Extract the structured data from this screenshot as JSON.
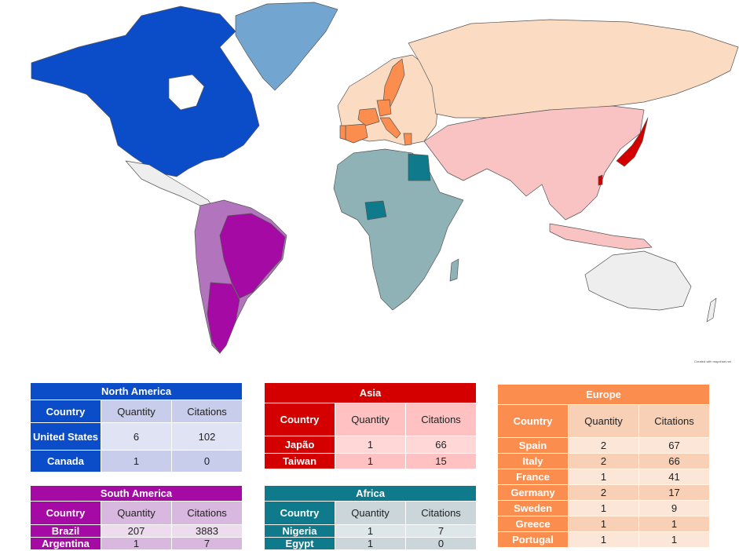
{
  "credit": "Created with mapchart.net",
  "colors": {
    "na_dark": "#0b4cc9",
    "na_mid": "#c7cdeb",
    "na_light": "#e0e3f3",
    "sa_dark": "#a50aa5",
    "sa_mid": "#d9b8df",
    "sa_light": "#ecdcee",
    "sa_map_light": "#b374be",
    "as_dark": "#d40000",
    "as_mid": "#ffc1c1",
    "as_light": "#ffd7d7",
    "as_map_light": "#f9c3c4",
    "af_dark": "#0e7a8c",
    "af_mid": "#cad6da",
    "af_light": "#dde6e9",
    "af_map_light": "#8fb2b7",
    "eu_dark": "#fb8e4f",
    "eu_mid": "#f8d0b6",
    "eu_light": "#fbe6d8",
    "eu_map_light": "#fbdcc2",
    "greenland": "#72a6d1",
    "other_land": "#eeeeee"
  },
  "tables": {
    "north_america": {
      "title": "North America",
      "headers": [
        "Country",
        "Quantity",
        "Citations"
      ],
      "rows": [
        {
          "country": "United States",
          "quantity": "6",
          "citations": "102"
        },
        {
          "country": "Canada",
          "quantity": "1",
          "citations": "0"
        }
      ]
    },
    "asia": {
      "title": "Asia",
      "headers": [
        "Country",
        "Quantity",
        "Citations"
      ],
      "rows": [
        {
          "country": "Japão",
          "quantity": "1",
          "citations": "66"
        },
        {
          "country": "Taiwan",
          "quantity": "1",
          "citations": "15"
        }
      ]
    },
    "europe": {
      "title": "Europe",
      "headers": [
        "Country",
        "Quantity",
        "Citations"
      ],
      "rows": [
        {
          "country": "Spain",
          "quantity": "2",
          "citations": "67"
        },
        {
          "country": "Italy",
          "quantity": "2",
          "citations": "66"
        },
        {
          "country": "France",
          "quantity": "1",
          "citations": "41"
        },
        {
          "country": "Germany",
          "quantity": "2",
          "citations": "17"
        },
        {
          "country": "Sweden",
          "quantity": "1",
          "citations": "9"
        },
        {
          "country": "Greece",
          "quantity": "1",
          "citations": "1"
        },
        {
          "country": "Portugal",
          "quantity": "1",
          "citations": "1"
        }
      ]
    },
    "south_america": {
      "title": "South America",
      "headers": [
        "Country",
        "Quantity",
        "Citations"
      ],
      "rows": [
        {
          "country": "Brazil",
          "quantity": "207",
          "citations": "3883"
        },
        {
          "country": "Argentina",
          "quantity": "1",
          "citations": "7"
        }
      ]
    },
    "africa": {
      "title": "Africa",
      "headers": [
        "Country",
        "Quantity",
        "Citations"
      ],
      "rows": [
        {
          "country": "Nigeria",
          "quantity": "1",
          "citations": "7"
        },
        {
          "country": "Egypt",
          "quantity": "1",
          "citations": "0"
        }
      ]
    }
  }
}
